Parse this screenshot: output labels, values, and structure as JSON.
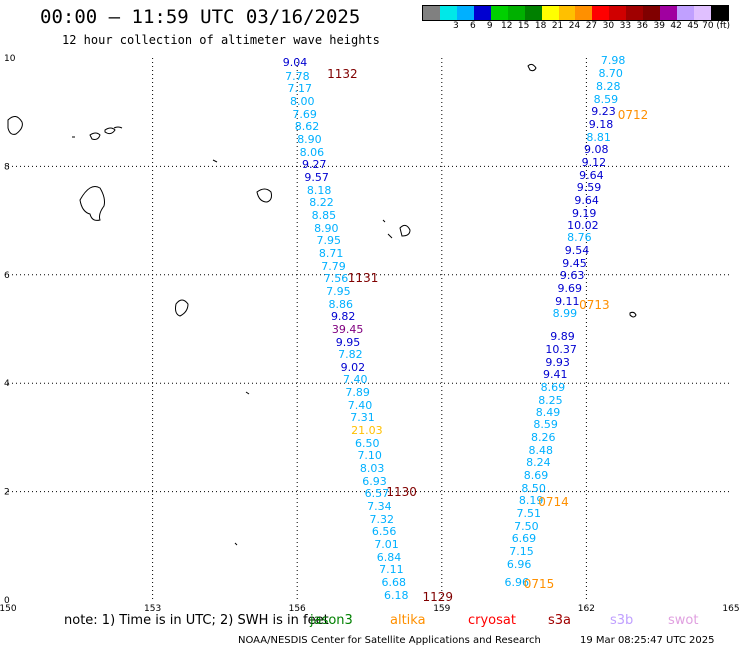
{
  "header": {
    "title": "00:00 – 11:59 UTC 03/16/2025",
    "subtitle": "12 hour collection of altimeter wave heights"
  },
  "colorbar": {
    "colors": [
      "#808080",
      "#00e8e8",
      "#00b0ff",
      "#0000d0",
      "#00d000",
      "#00b000",
      "#008000",
      "#ffff00",
      "#ffc000",
      "#ff9000",
      "#ff0000",
      "#d00000",
      "#a00000",
      "#800000",
      "#a000a0",
      "#c0a0ff",
      "#e0c0ff",
      "#000000"
    ],
    "labels": [
      "3",
      "6",
      "9",
      "12",
      "15",
      "18",
      "21",
      "24",
      "27",
      "30",
      "33",
      "36",
      "39",
      "42",
      "45",
      "70 (ft)"
    ]
  },
  "axes": {
    "x_ticks": [
      "150",
      "153",
      "156",
      "159",
      "162",
      "165"
    ],
    "y_ticks": [
      "0",
      "2",
      "4",
      "6",
      "8",
      "10"
    ]
  },
  "passes": [
    {
      "time": "1132",
      "color": "#800000",
      "lon": 156.62,
      "lat": 9.7
    },
    {
      "time": "1131",
      "color": "#800000",
      "lon": 157.05,
      "lat": 5.95
    },
    {
      "time": "1130",
      "color": "#800000",
      "lon": 157.85,
      "lat": 2.0
    },
    {
      "time": "1129",
      "color": "#800000",
      "lon": 158.6,
      "lat": 0.05
    },
    {
      "time": "0712",
      "color": "#ff9000",
      "lon": 162.65,
      "lat": 8.95
    },
    {
      "time": "0713",
      "color": "#ff9000",
      "lon": 161.85,
      "lat": 5.45
    },
    {
      "time": "0714",
      "color": "#ff9000",
      "lon": 161.0,
      "lat": 1.8
    },
    {
      "time": "0715",
      "color": "#ff9000",
      "lon": 160.7,
      "lat": 0.3
    }
  ],
  "track_west": [
    {
      "v": "9.04",
      "lon": 155.7,
      "lat": 9.9,
      "c": "#0000d0"
    },
    {
      "v": "7.78",
      "lon": 155.75,
      "lat": 9.65,
      "c": "#00b0ff"
    },
    {
      "v": "7.17",
      "lon": 155.8,
      "lat": 9.42,
      "c": "#00b0ff"
    },
    {
      "v": "8.00",
      "lon": 155.85,
      "lat": 9.18,
      "c": "#00b0ff"
    },
    {
      "v": "7.69",
      "lon": 155.9,
      "lat": 8.95,
      "c": "#00b0ff"
    },
    {
      "v": "8.62",
      "lon": 155.95,
      "lat": 8.72,
      "c": "#00b0ff"
    },
    {
      "v": "8.90",
      "lon": 156.0,
      "lat": 8.48,
      "c": "#00b0ff"
    },
    {
      "v": "8.06",
      "lon": 156.05,
      "lat": 8.25,
      "c": "#00b0ff"
    },
    {
      "v": "9.27",
      "lon": 156.1,
      "lat": 8.02,
      "c": "#0000d0"
    },
    {
      "v": "9.57",
      "lon": 156.15,
      "lat": 7.78,
      "c": "#0000d0"
    },
    {
      "v": "8.18",
      "lon": 156.2,
      "lat": 7.55,
      "c": "#00b0ff"
    },
    {
      "v": "8.22",
      "lon": 156.25,
      "lat": 7.32,
      "c": "#00b0ff"
    },
    {
      "v": "8.85",
      "lon": 156.3,
      "lat": 7.08,
      "c": "#00b0ff"
    },
    {
      "v": "8.90",
      "lon": 156.35,
      "lat": 6.85,
      "c": "#00b0ff"
    },
    {
      "v": "7.95",
      "lon": 156.4,
      "lat": 6.62,
      "c": "#00b0ff"
    },
    {
      "v": "8.71",
      "lon": 156.45,
      "lat": 6.38,
      "c": "#00b0ff"
    },
    {
      "v": "7.79",
      "lon": 156.5,
      "lat": 6.15,
      "c": "#00b0ff"
    },
    {
      "v": "7.56",
      "lon": 156.55,
      "lat": 5.92,
      "c": "#00b0ff"
    },
    {
      "v": "7.95",
      "lon": 156.6,
      "lat": 5.68,
      "c": "#00b0ff"
    },
    {
      "v": "8.86",
      "lon": 156.65,
      "lat": 5.45,
      "c": "#00b0ff"
    },
    {
      "v": "9.82",
      "lon": 156.7,
      "lat": 5.22,
      "c": "#0000d0"
    },
    {
      "v": "39.45",
      "lon": 156.72,
      "lat": 4.98,
      "c": "#800080"
    },
    {
      "v": "9.95",
      "lon": 156.8,
      "lat": 4.75,
      "c": "#0000d0"
    },
    {
      "v": "7.82",
      "lon": 156.85,
      "lat": 4.52,
      "c": "#00b0ff"
    },
    {
      "v": "9.02",
      "lon": 156.9,
      "lat": 4.28,
      "c": "#0000d0"
    },
    {
      "v": "7.40",
      "lon": 156.95,
      "lat": 4.05,
      "c": "#00b0ff"
    },
    {
      "v": "7.89",
      "lon": 157.0,
      "lat": 3.82,
      "c": "#00b0ff"
    },
    {
      "v": "7.40",
      "lon": 157.05,
      "lat": 3.58,
      "c": "#00b0ff"
    },
    {
      "v": "7.31",
      "lon": 157.1,
      "lat": 3.35,
      "c": "#00b0ff"
    },
    {
      "v": "21.03",
      "lon": 157.12,
      "lat": 3.12,
      "c": "#ffc000"
    },
    {
      "v": "6.50",
      "lon": 157.2,
      "lat": 2.88,
      "c": "#00b0ff"
    },
    {
      "v": "7.10",
      "lon": 157.25,
      "lat": 2.65,
      "c": "#00b0ff"
    },
    {
      "v": "8.03",
      "lon": 157.3,
      "lat": 2.42,
      "c": "#00b0ff"
    },
    {
      "v": "6.93",
      "lon": 157.35,
      "lat": 2.18,
      "c": "#00b0ff"
    },
    {
      "v": "6.57",
      "lon": 157.4,
      "lat": 1.95,
      "c": "#00b0ff"
    },
    {
      "v": "7.34",
      "lon": 157.45,
      "lat": 1.72,
      "c": "#00b0ff"
    },
    {
      "v": "7.32",
      "lon": 157.5,
      "lat": 1.48,
      "c": "#00b0ff"
    },
    {
      "v": "6.56",
      "lon": 157.55,
      "lat": 1.25,
      "c": "#00b0ff"
    },
    {
      "v": "7.01",
      "lon": 157.6,
      "lat": 1.02,
      "c": "#00b0ff"
    },
    {
      "v": "6.84",
      "lon": 157.65,
      "lat": 0.78,
      "c": "#00b0ff"
    },
    {
      "v": "7.11",
      "lon": 157.7,
      "lat": 0.55,
      "c": "#00b0ff"
    },
    {
      "v": "6.68",
      "lon": 157.75,
      "lat": 0.32,
      "c": "#00b0ff"
    },
    {
      "v": "6.18",
      "lon": 157.8,
      "lat": 0.08,
      "c": "#00b0ff"
    }
  ],
  "track_east": [
    {
      "v": "7.98",
      "lon": 162.3,
      "lat": 9.95,
      "c": "#00b0ff"
    },
    {
      "v": "8.70",
      "lon": 162.25,
      "lat": 9.7,
      "c": "#00b0ff"
    },
    {
      "v": "8.28",
      "lon": 162.2,
      "lat": 9.47,
      "c": "#00b0ff"
    },
    {
      "v": "8.59",
      "lon": 162.15,
      "lat": 9.23,
      "c": "#00b0ff"
    },
    {
      "v": "9.23",
      "lon": 162.1,
      "lat": 9.0,
      "c": "#0000d0"
    },
    {
      "v": "9.18",
      "lon": 162.05,
      "lat": 8.77,
      "c": "#0000d0"
    },
    {
      "v": "8.81",
      "lon": 162.0,
      "lat": 8.53,
      "c": "#00b0ff"
    },
    {
      "v": "9.08",
      "lon": 161.95,
      "lat": 8.3,
      "c": "#0000d0"
    },
    {
      "v": "9.12",
      "lon": 161.9,
      "lat": 8.07,
      "c": "#0000d0"
    },
    {
      "v": "9.64",
      "lon": 161.85,
      "lat": 7.83,
      "c": "#0000d0"
    },
    {
      "v": "9.59",
      "lon": 161.8,
      "lat": 7.6,
      "c": "#0000d0"
    },
    {
      "v": "9.64",
      "lon": 161.75,
      "lat": 7.37,
      "c": "#0000d0"
    },
    {
      "v": "9.19",
      "lon": 161.7,
      "lat": 7.13,
      "c": "#0000d0"
    },
    {
      "v": "10.02",
      "lon": 161.6,
      "lat": 6.9,
      "c": "#0000d0"
    },
    {
      "v": "8.76",
      "lon": 161.6,
      "lat": 6.67,
      "c": "#00b0ff"
    },
    {
      "v": "9.54",
      "lon": 161.55,
      "lat": 6.43,
      "c": "#0000d0"
    },
    {
      "v": "9.45",
      "lon": 161.5,
      "lat": 6.2,
      "c": "#0000d0"
    },
    {
      "v": "9.63",
      "lon": 161.45,
      "lat": 5.97,
      "c": "#0000d0"
    },
    {
      "v": "9.69",
      "lon": 161.4,
      "lat": 5.73,
      "c": "#0000d0"
    },
    {
      "v": "9.11",
      "lon": 161.35,
      "lat": 5.5,
      "c": "#0000d0"
    },
    {
      "v": "8.99",
      "lon": 161.3,
      "lat": 5.27,
      "c": "#00b0ff"
    },
    {
      "v": "9.89",
      "lon": 161.25,
      "lat": 4.85,
      "c": "#0000d0"
    },
    {
      "v": "10.37",
      "lon": 161.15,
      "lat": 4.62,
      "c": "#0000d0"
    },
    {
      "v": "9.93",
      "lon": 161.15,
      "lat": 4.38,
      "c": "#0000d0"
    },
    {
      "v": "9.41",
      "lon": 161.1,
      "lat": 4.15,
      "c": "#0000d0"
    },
    {
      "v": "8.69",
      "lon": 161.05,
      "lat": 3.92,
      "c": "#00b0ff"
    },
    {
      "v": "8.25",
      "lon": 161.0,
      "lat": 3.68,
      "c": "#00b0ff"
    },
    {
      "v": "8.49",
      "lon": 160.95,
      "lat": 3.45,
      "c": "#00b0ff"
    },
    {
      "v": "8.59",
      "lon": 160.9,
      "lat": 3.22,
      "c": "#00b0ff"
    },
    {
      "v": "8.26",
      "lon": 160.85,
      "lat": 2.98,
      "c": "#00b0ff"
    },
    {
      "v": "8.48",
      "lon": 160.8,
      "lat": 2.75,
      "c": "#00b0ff"
    },
    {
      "v": "8.24",
      "lon": 160.75,
      "lat": 2.52,
      "c": "#00b0ff"
    },
    {
      "v": "8.69",
      "lon": 160.7,
      "lat": 2.28,
      "c": "#00b0ff"
    },
    {
      "v": "8.50",
      "lon": 160.65,
      "lat": 2.05,
      "c": "#00b0ff"
    },
    {
      "v": "8.19",
      "lon": 160.6,
      "lat": 1.82,
      "c": "#00b0ff"
    },
    {
      "v": "7.51",
      "lon": 160.55,
      "lat": 1.58,
      "c": "#00b0ff"
    },
    {
      "v": "7.50",
      "lon": 160.5,
      "lat": 1.35,
      "c": "#00b0ff"
    },
    {
      "v": "6.69",
      "lon": 160.45,
      "lat": 1.12,
      "c": "#00b0ff"
    },
    {
      "v": "7.15",
      "lon": 160.4,
      "lat": 0.88,
      "c": "#00b0ff"
    },
    {
      "v": "6.96",
      "lon": 160.35,
      "lat": 0.65,
      "c": "#00b0ff"
    },
    {
      "v": "6.96",
      "lon": 160.3,
      "lat": 0.32,
      "c": "#00b0ff"
    }
  ],
  "note": "note:  1) Time is in UTC;  2) SWH is in feet",
  "satellites": [
    {
      "name": "jason3",
      "color": "#008000"
    },
    {
      "name": "altika",
      "color": "#ff9000"
    },
    {
      "name": "cryosat",
      "color": "#ff0000"
    },
    {
      "name": "s3a",
      "color": "#a00000"
    },
    {
      "name": "s3b",
      "color": "#c0a0ff"
    },
    {
      "name": "swot",
      "color": "#e0a0e0"
    }
  ],
  "footer": {
    "left": "NOAA/NESDIS Center for Satellite Applications and Research",
    "right": "19 Mar 08:25:47 UTC 2025"
  }
}
